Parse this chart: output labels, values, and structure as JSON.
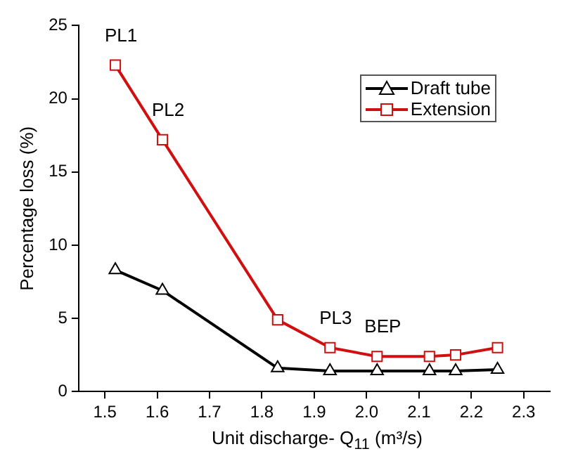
{
  "chart_data": {
    "type": "line",
    "xlabel": "Unit discharge- Q$_{11}$ (m³/s)",
    "ylabel": "Percentage loss (%)",
    "x": [
      1.52,
      1.61,
      1.83,
      1.93,
      2.02,
      2.12,
      2.17,
      2.25
    ],
    "series": [
      {
        "name": "Draft tube",
        "color": "#000000",
        "marker": "triangle",
        "values": [
          8.3,
          6.9,
          1.6,
          1.4,
          1.4,
          1.4,
          1.4,
          1.5
        ]
      },
      {
        "name": "Extension",
        "color": "#d01010",
        "marker": "square",
        "values": [
          22.3,
          17.2,
          4.9,
          3.0,
          2.4,
          2.4,
          2.5,
          3.0
        ]
      }
    ],
    "xlim": [
      1.45,
      2.35
    ],
    "xticks": [
      1.5,
      1.6,
      1.7,
      1.8,
      1.9,
      {
        "value": 2,
        "label": "2.0"
      },
      2.1,
      2.2,
      2.3
    ],
    "ylim": [
      0,
      25
    ],
    "yticks": [
      0,
      5,
      10,
      15,
      20,
      25
    ],
    "grid": false,
    "legend": "top right",
    "annotations": [
      {
        "text": "PL1",
        "x": 1.52,
        "y": 22.3
      },
      {
        "text": "PL2",
        "x": 1.61,
        "y": 17.2
      },
      {
        "text": "PL3",
        "x": 1.93,
        "y": 3.0
      },
      {
        "text": "BEP",
        "x": 2.02,
        "y": 2.4
      }
    ]
  }
}
